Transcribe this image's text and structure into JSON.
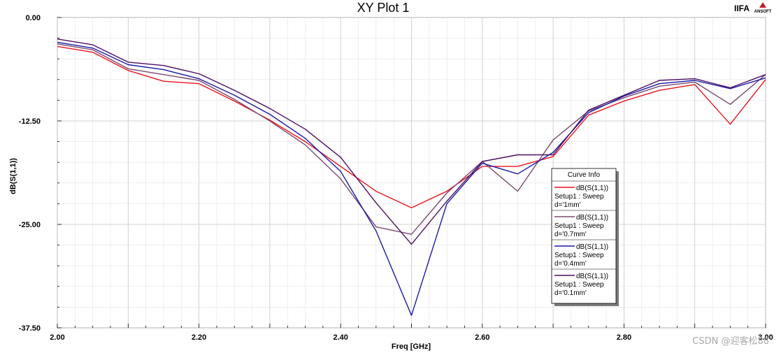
{
  "header": {
    "title": "XY Plot 1",
    "brand": "IIFA",
    "ansoft_label": "ANSOFT"
  },
  "watermark": "CSDN @迎客松88",
  "chart_data": {
    "type": "line",
    "title": "XY Plot 1",
    "xlabel": "Freq [GHz]",
    "ylabel": "dB(S(1,1))",
    "xlim": [
      2.0,
      3.0
    ],
    "ylim": [
      -37.5,
      0.0
    ],
    "x_ticks": [
      2.0,
      2.2,
      2.4,
      2.6,
      2.8,
      3.0
    ],
    "x_tick_labels": [
      "2.00",
      "2.20",
      "2.40",
      "2.60",
      "2.80",
      "3.00"
    ],
    "y_ticks": [
      0.0,
      -12.5,
      -25.0,
      -37.5
    ],
    "y_tick_labels": [
      "0.00",
      "-12.50",
      "-25.00",
      "-37.50"
    ],
    "grid": true,
    "legend_title": "Curve Info",
    "legend_position": "center-right",
    "x": [
      2.0,
      2.05,
      2.1,
      2.15,
      2.2,
      2.25,
      2.3,
      2.35,
      2.4,
      2.45,
      2.5,
      2.55,
      2.6,
      2.65,
      2.7,
      2.75,
      2.8,
      2.85,
      2.9,
      2.95,
      3.0
    ],
    "series": [
      {
        "name": "dB(S(1,1))",
        "setup": "Setup1 : Sweep",
        "param": "d='1mm'",
        "color": "#e8141c",
        "values": [
          -3.5,
          -4.2,
          -6.4,
          -7.7,
          -8.0,
          -10.1,
          -12.4,
          -15.0,
          -18.0,
          -21.0,
          -23.0,
          -21.0,
          -18.0,
          -18.0,
          -16.8,
          -11.8,
          -10.1,
          -8.8,
          -8.1,
          -12.9,
          -7.5
        ]
      },
      {
        "name": "dB(S(1,1))",
        "setup": "Setup1 : Sweep",
        "param": "d='0.7mm'",
        "color": "#7a4a6e",
        "values": [
          -3.2,
          -3.9,
          -6.2,
          -6.9,
          -7.6,
          -9.9,
          -12.5,
          -15.4,
          -19.5,
          -25.3,
          -26.2,
          -21.2,
          -17.4,
          -21.0,
          -14.8,
          -11.3,
          -9.7,
          -8.3,
          -7.8,
          -10.5,
          -6.9
        ]
      },
      {
        "name": "dB(S(1,1))",
        "setup": "Setup1 : Sweep",
        "param": "d='0.4mm'",
        "color": "#1a1aa8",
        "values": [
          -3.0,
          -3.7,
          -5.7,
          -6.3,
          -7.4,
          -9.4,
          -11.7,
          -14.6,
          -18.6,
          -25.8,
          -36.0,
          -22.5,
          -17.6,
          -18.9,
          -16.3,
          -11.5,
          -9.5,
          -8.0,
          -7.6,
          -8.6,
          -7.3
        ]
      },
      {
        "name": "dB(S(1,1))",
        "setup": "Setup1 : Sweep",
        "param": "d='0.1mm'",
        "color": "#4b0f63",
        "values": [
          -2.6,
          -3.3,
          -5.4,
          -5.8,
          -6.8,
          -8.8,
          -11.0,
          -13.5,
          -16.9,
          -22.4,
          -27.4,
          -22.2,
          -17.4,
          -16.6,
          -16.6,
          -11.2,
          -9.4,
          -7.6,
          -7.4,
          -8.5,
          -6.9
        ]
      }
    ]
  }
}
